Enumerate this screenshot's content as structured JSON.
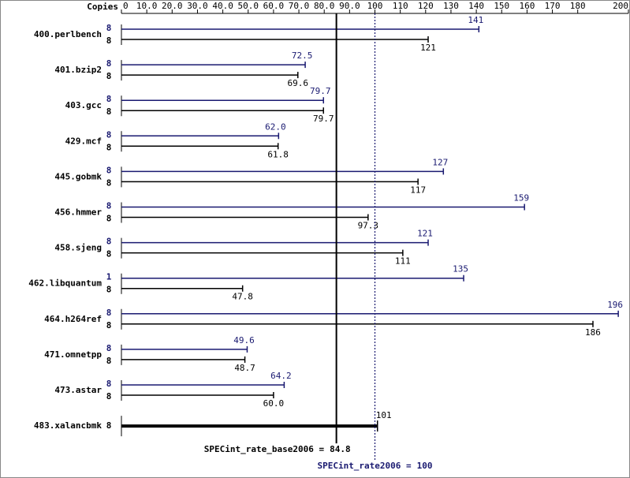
{
  "chart_data": {
    "type": "bar",
    "orientation": "horizontal",
    "copies_label": "Copies",
    "categories": [
      "400.perlbench",
      "401.bzip2",
      "403.gcc",
      "429.mcf",
      "445.gobmk",
      "456.hmmer",
      "458.sjeng",
      "462.libquantum",
      "464.h264ref",
      "471.omnetpp",
      "473.astar",
      "483.xalancbmk"
    ],
    "series": [
      {
        "color": "#191970",
        "copies": [
          8,
          8,
          8,
          8,
          8,
          8,
          8,
          1,
          8,
          8,
          8,
          null
        ],
        "values": [
          141,
          72.5,
          79.7,
          62.0,
          127,
          159,
          121,
          135,
          196,
          49.6,
          64.2,
          null
        ],
        "value_labels": [
          "141",
          "72.5",
          "79.7",
          "62.0",
          "127",
          "159",
          "121",
          "135",
          "196",
          "49.6",
          "64.2",
          null
        ]
      },
      {
        "color": "#000000",
        "copies": [
          8,
          8,
          8,
          8,
          8,
          8,
          8,
          8,
          8,
          8,
          8,
          8
        ],
        "values": [
          121,
          69.6,
          79.7,
          61.8,
          117,
          97.3,
          111,
          47.8,
          186,
          48.7,
          60.0,
          101
        ],
        "value_labels": [
          "121",
          "69.6",
          "79.7",
          "61.8",
          "117",
          "97.3",
          "111",
          "47.8",
          "186",
          "48.7",
          "60.0",
          "101"
        ]
      }
    ],
    "xlim": [
      0,
      200
    ],
    "xticks": [
      0,
      {
        "value": 10,
        "label": "10.0"
      },
      {
        "value": 20,
        "label": "20.0"
      },
      {
        "value": 30,
        "label": "30.0"
      },
      {
        "value": 40,
        "label": "40.0"
      },
      {
        "value": 50,
        "label": "50.0"
      },
      {
        "value": 60,
        "label": "60.0"
      },
      {
        "value": 70,
        "label": "70.0"
      },
      {
        "value": 80,
        "label": "80.0"
      },
      {
        "value": 90,
        "label": "90.0"
      },
      100,
      110,
      120,
      130,
      140,
      150,
      160,
      170,
      180,
      200
    ],
    "reference_lines": [
      {
        "label": "SPECint_rate_base2006 =",
        "value": 84.8,
        "color": "#000000",
        "style": "solid"
      },
      {
        "label": "SPECint_rate2006 =",
        "value": 100,
        "color": "#191970",
        "style": "dotted"
      }
    ]
  }
}
